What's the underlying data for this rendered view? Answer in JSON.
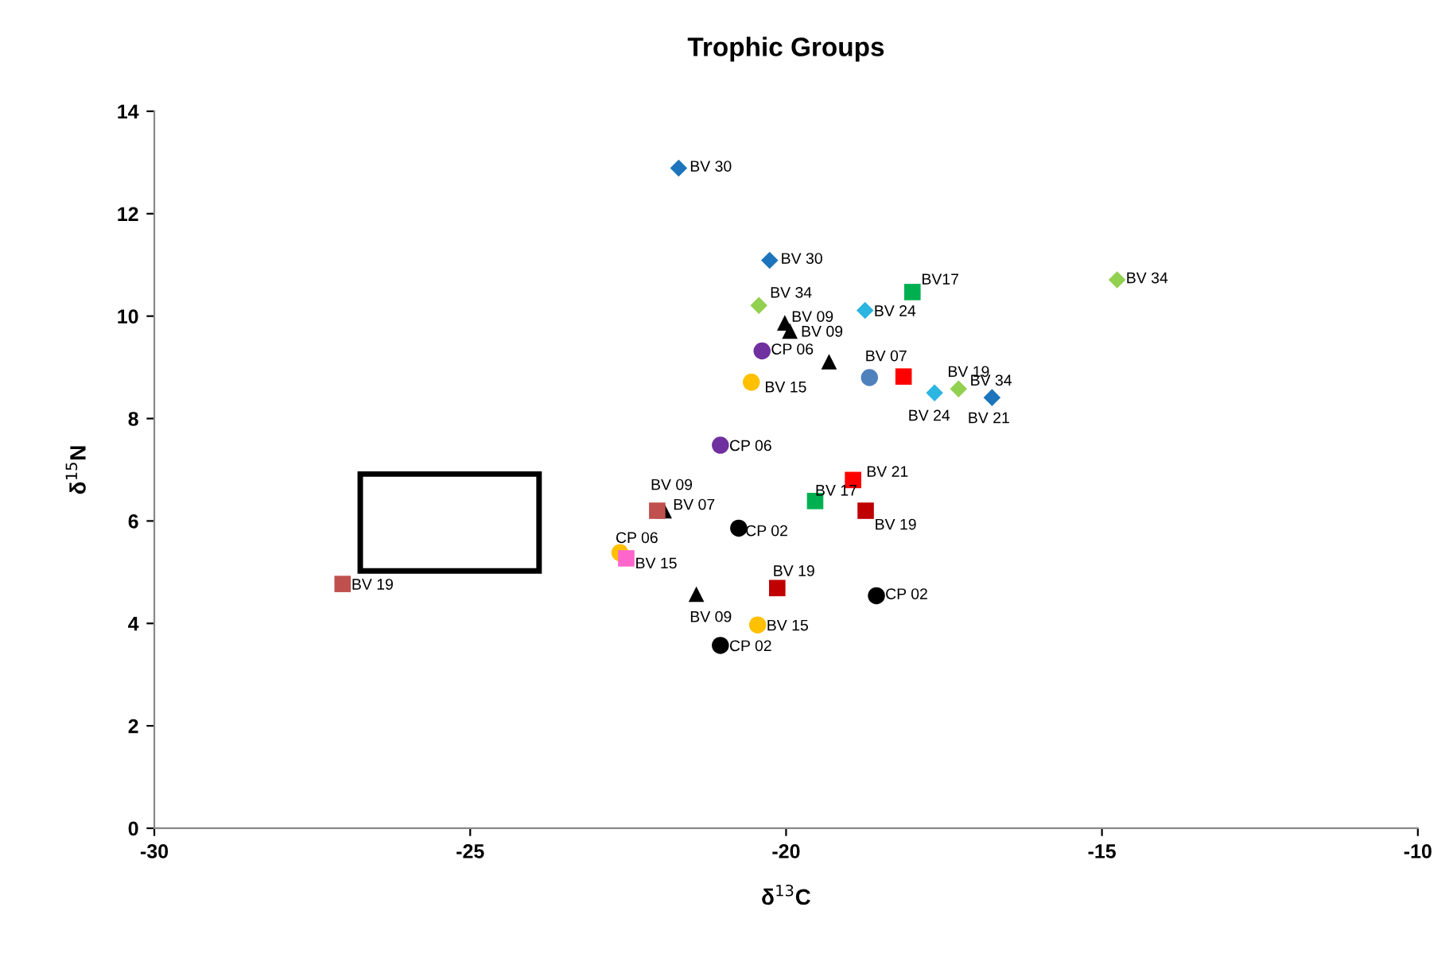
{
  "chart_data": {
    "type": "scatter",
    "title": "Trophic Groups",
    "xlabel": "δ$^{13}$C",
    "ylabel": "δ$^{15}$N",
    "xlim": [
      -30,
      -10
    ],
    "xticks": [
      -30,
      -25,
      -20,
      -15,
      -10
    ],
    "ylim": [
      0,
      14
    ],
    "yticks": [
      0,
      2,
      4,
      6,
      8,
      10,
      12,
      14
    ],
    "grid": false,
    "legend": false,
    "series": [
      {
        "color": "#1c75bc",
        "marker": "diamond",
        "x": [
          -21.7,
          -20.26,
          -16.74
        ],
        "values": [
          12.89,
          11.09,
          8.41
        ]
      },
      {
        "color": "#92d050",
        "marker": "diamond",
        "x": [
          -20.43,
          -17.27,
          -14.76
        ],
        "values": [
          10.21,
          8.58,
          10.71
        ]
      },
      {
        "color": "#2bb5e0",
        "marker": "diamond",
        "x": [
          -18.75,
          -17.65
        ],
        "values": [
          10.11,
          8.5
        ]
      },
      {
        "color": "#000000",
        "marker": "triangle",
        "x": [
          -20.02,
          -19.94,
          -19.32,
          -21.93,
          -21.42
        ],
        "values": [
          9.87,
          9.71,
          9.11,
          6.2,
          4.57
        ]
      },
      {
        "color": "#7030a0",
        "marker": "circle",
        "x": [
          -20.38,
          -21.04
        ],
        "values": [
          9.32,
          7.48
        ]
      },
      {
        "color": "#ffc000",
        "marker": "circle",
        "x": [
          -20.55,
          -22.63,
          -20.45
        ],
        "values": [
          8.71,
          5.38,
          3.97
        ]
      },
      {
        "color": "#4f81bd",
        "marker": "circle",
        "x": [
          -18.68
        ],
        "values": [
          8.8
        ]
      },
      {
        "color": "#000000",
        "marker": "circle",
        "x": [
          -21.04,
          -20.75,
          -18.57
        ],
        "values": [
          3.57,
          5.86,
          4.54
        ]
      },
      {
        "color": "#ff0000",
        "marker": "square",
        "x": [
          -18.14,
          -18.94
        ],
        "values": [
          8.82,
          6.8
        ]
      },
      {
        "color": "#00b050",
        "marker": "square",
        "x": [
          -18.0,
          -19.54
        ],
        "values": [
          10.47,
          6.39
        ]
      },
      {
        "color": "#c00000",
        "marker": "square",
        "x": [
          -18.74,
          -20.14
        ],
        "values": [
          6.2,
          4.69
        ]
      },
      {
        "color": "#c0504d",
        "marker": "square",
        "x": [
          -27.02,
          -22.04
        ],
        "values": [
          4.77,
          6.2
        ]
      },
      {
        "color": "#ff66cc",
        "marker": "square",
        "x": [
          -22.53
        ],
        "values": [
          5.27
        ]
      }
    ],
    "annotations": [
      {
        "text": "BV 30",
        "x": -21.7,
        "y": 12.89
      },
      {
        "text": "BV 30",
        "x": -20.26,
        "y": 11.09
      },
      {
        "text": "BV 34",
        "x": -20.43,
        "y": 10.21
      },
      {
        "text": "BV 09",
        "x": -20.02,
        "y": 9.87
      },
      {
        "text": "BV 09",
        "x": -19.94,
        "y": 9.71
      },
      {
        "text": "CP 06",
        "x": -20.38,
        "y": 9.32
      },
      {
        "text": "BV 15",
        "x": -20.55,
        "y": 8.71
      },
      {
        "text": "BV 07",
        "x": -18.68,
        "y": 8.8
      },
      {
        "text": "BV17",
        "x": -18.0,
        "y": 10.47
      },
      {
        "text": "BV 24",
        "x": -18.75,
        "y": 10.11
      },
      {
        "text": "BV 24",
        "x": -17.65,
        "y": 8.5
      },
      {
        "text": "BV 19",
        "x": -17.27,
        "y": 8.58
      },
      {
        "text": "BV 34",
        "x": -16.74,
        "y": 8.41
      },
      {
        "text": "BV 21",
        "x": -16.74,
        "y": 8.41
      },
      {
        "text": "CP 06",
        "x": -21.04,
        "y": 7.48
      },
      {
        "text": "BV 34",
        "x": -14.76,
        "y": 10.71
      },
      {
        "text": "BV 19",
        "x": -27.02,
        "y": 4.77
      },
      {
        "text": "BV 09",
        "x": -22.04,
        "y": 6.2
      },
      {
        "text": "BV 07",
        "x": -21.93,
        "y": 6.2
      },
      {
        "text": "CP 06",
        "x": -22.63,
        "y": 5.38
      },
      {
        "text": "BV 15",
        "x": -22.53,
        "y": 5.27
      },
      {
        "text": "BV 09",
        "x": -21.42,
        "y": 4.57
      },
      {
        "text": "CP 02",
        "x": -21.04,
        "y": 3.57
      },
      {
        "text": "CP 02",
        "x": -20.75,
        "y": 5.86
      },
      {
        "text": "BV 21",
        "x": -18.94,
        "y": 6.8
      },
      {
        "text": "BV 17",
        "x": -19.54,
        "y": 6.39
      },
      {
        "text": "BV 19",
        "x": -18.74,
        "y": 6.2
      },
      {
        "text": "BV 19",
        "x": -20.14,
        "y": 4.69
      },
      {
        "text": "CP 02",
        "x": -18.57,
        "y": 4.54
      },
      {
        "text": "BV 15",
        "x": -20.45,
        "y": 3.97
      }
    ]
  }
}
